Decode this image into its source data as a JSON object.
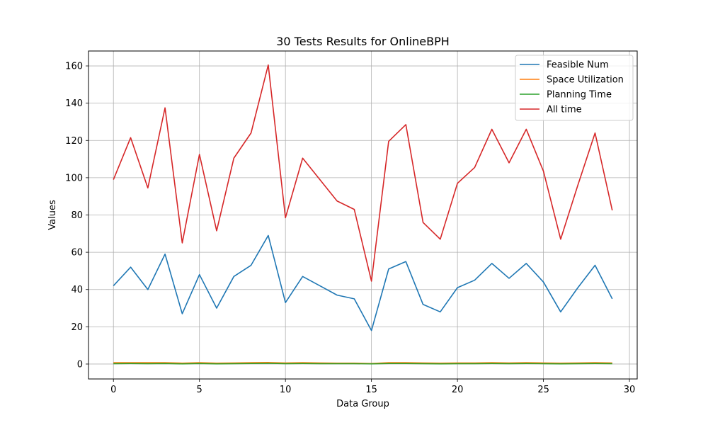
{
  "chart_data": {
    "type": "line",
    "title": "30 Tests Results for OnlineBPH",
    "xlabel": "Data Group",
    "ylabel": "Values",
    "xlim": [
      -1.45,
      30.45
    ],
    "ylim": [
      -8.0,
      168.0
    ],
    "xticks": [
      0,
      5,
      10,
      15,
      20,
      25,
      30
    ],
    "yticks": [
      0,
      20,
      40,
      60,
      80,
      100,
      120,
      140,
      160
    ],
    "grid": true,
    "legend_position": "top-right",
    "x": [
      0,
      1,
      2,
      3,
      4,
      5,
      6,
      7,
      8,
      9,
      10,
      11,
      12,
      13,
      14,
      15,
      16,
      17,
      18,
      19,
      20,
      21,
      22,
      23,
      24,
      25,
      26,
      27,
      28,
      29
    ],
    "series": [
      {
        "name": "Feasible Num",
        "color": "#1f77b4",
        "values": [
          42,
          52,
          40,
          59,
          27,
          48,
          30,
          47,
          53,
          69,
          33,
          47,
          42,
          37,
          35,
          18,
          51,
          55,
          32,
          28,
          41,
          45,
          54,
          46,
          54,
          44,
          28,
          41,
          53,
          35
        ]
      },
      {
        "name": "Space Utilization",
        "color": "#ff7f0e",
        "values": [
          0.7,
          0.7,
          0.7,
          0.7,
          0.5,
          0.7,
          0.5,
          0.6,
          0.7,
          0.8,
          0.6,
          0.7,
          0.6,
          0.5,
          0.5,
          0.3,
          0.7,
          0.7,
          0.6,
          0.5,
          0.6,
          0.6,
          0.7,
          0.6,
          0.7,
          0.6,
          0.5,
          0.6,
          0.7,
          0.6
        ]
      },
      {
        "name": "Planning Time",
        "color": "#2ca02c",
        "values": [
          0.2,
          0.3,
          0.2,
          0.3,
          0.1,
          0.3,
          0.1,
          0.2,
          0.3,
          0.4,
          0.2,
          0.3,
          0.2,
          0.2,
          0.2,
          0.1,
          0.3,
          0.3,
          0.2,
          0.1,
          0.2,
          0.2,
          0.3,
          0.2,
          0.3,
          0.2,
          0.1,
          0.2,
          0.3,
          0.2
        ]
      },
      {
        "name": "All time",
        "color": "#d62728",
        "values": [
          99,
          121.5,
          94.5,
          137.5,
          65,
          112.5,
          71.5,
          110.5,
          124,
          160.5,
          78.5,
          110.5,
          99,
          87.5,
          83,
          44.5,
          119.5,
          128.5,
          76,
          67,
          97,
          105.5,
          126,
          108,
          126,
          103.5,
          67,
          96,
          124,
          82.5
        ]
      }
    ]
  }
}
